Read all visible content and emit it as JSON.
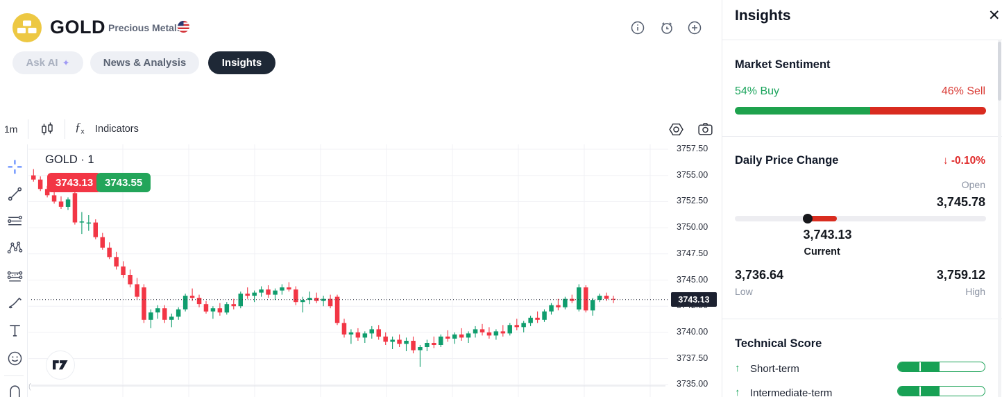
{
  "header": {
    "symbol": "GOLD",
    "category": "Precious Metals",
    "tabs": [
      {
        "label": "Ask AI",
        "active": false
      },
      {
        "label": "News & Analysis",
        "active": false
      },
      {
        "label": "Insights",
        "active": true
      }
    ],
    "icons": [
      "info-icon",
      "alarm-icon",
      "add-alert-icon"
    ]
  },
  "chart_toolbar": {
    "interval": "1m",
    "indicators_label": "Indicators",
    "icons": [
      "candlestick-style-icon",
      "fx-indicators-icon",
      "settings-icon",
      "camera-icon"
    ]
  },
  "drawing_toolbar": {
    "tools": [
      "crosshair",
      "trend-line",
      "parallel-lines",
      "xabcd-pattern",
      "projection",
      "brush",
      "text",
      "emoji",
      "magnet"
    ]
  },
  "chart": {
    "title": "GOLD · 1",
    "bid_badge": "3743.13",
    "ask_badge": "3743.55",
    "current_price_label": "3743.13"
  },
  "chart_data": {
    "type": "candlestick",
    "title": "GOLD · 1",
    "interval": "1m",
    "current_price": 3743.13,
    "up_color": "#0f9d6d",
    "down_color": "#f23645",
    "y_axis": {
      "min": 3735.0,
      "max": 3757.5,
      "tick_step": 2.5,
      "labels": [
        "3757.50",
        "3755.00",
        "3752.50",
        "3750.00",
        "3747.50",
        "3745.00",
        "3742.50",
        "3740.00",
        "3737.50",
        "3735.00"
      ],
      "values": [
        3757.5,
        3755.0,
        3752.5,
        3750.0,
        3747.5,
        3745.0,
        3742.5,
        3740.0,
        3737.5,
        3735.0
      ]
    },
    "layout": {
      "grid": true,
      "v_gridlines_x": [
        136,
        231,
        326,
        421,
        516,
        611,
        706,
        801,
        896
      ]
    },
    "candles": [
      [
        3755.0,
        3755.6,
        3754.4,
        3754.6
      ],
      [
        3754.6,
        3754.9,
        3753.5,
        3753.7
      ],
      [
        3753.7,
        3754.0,
        3752.9,
        3753.1
      ],
      [
        3753.1,
        3753.4,
        3752.3,
        3752.5
      ],
      [
        3752.5,
        3753.0,
        3751.8,
        3752.0
      ],
      [
        3752.0,
        3752.9,
        3751.7,
        3752.7
      ],
      [
        3753.3,
        3753.5,
        3750.3,
        3750.5
      ],
      [
        3750.5,
        3751.5,
        3749.4,
        3750.6
      ],
      [
        3750.4,
        3751.2,
        3749.7,
        3750.5
      ],
      [
        3750.5,
        3750.8,
        3748.9,
        3749.1
      ],
      [
        3749.1,
        3749.5,
        3747.9,
        3748.1
      ],
      [
        3748.1,
        3748.6,
        3747.0,
        3747.2
      ],
      [
        3747.2,
        3747.7,
        3746.0,
        3746.3
      ],
      [
        3746.3,
        3746.8,
        3745.2,
        3745.5
      ],
      [
        3745.5,
        3746.0,
        3744.3,
        3744.6
      ],
      [
        3744.6,
        3745.2,
        3743.1,
        3743.4
      ],
      [
        3744.3,
        3744.6,
        3740.9,
        3741.2
      ],
      [
        3741.2,
        3742.2,
        3740.4,
        3741.9
      ],
      [
        3741.9,
        3742.6,
        3741.3,
        3742.3
      ],
      [
        3742.3,
        3742.6,
        3740.9,
        3741.2
      ],
      [
        3741.2,
        3741.8,
        3740.5,
        3741.5
      ],
      [
        3741.5,
        3742.4,
        3741.2,
        3742.2
      ],
      [
        3742.2,
        3743.7,
        3742.0,
        3743.5
      ],
      [
        3743.5,
        3744.2,
        3743.0,
        3743.3
      ],
      [
        3743.3,
        3743.6,
        3742.4,
        3742.7
      ],
      [
        3742.7,
        3743.0,
        3741.8,
        3742.0
      ],
      [
        3742.0,
        3742.5,
        3741.3,
        3742.3
      ],
      [
        3742.3,
        3742.8,
        3741.6,
        3741.9
      ],
      [
        3741.9,
        3742.9,
        3741.7,
        3742.7
      ],
      [
        3742.7,
        3743.2,
        3742.2,
        3742.5
      ],
      [
        3742.5,
        3743.9,
        3742.3,
        3743.7
      ],
      [
        3743.7,
        3744.3,
        3743.2,
        3743.5
      ],
      [
        3743.5,
        3744.0,
        3742.9,
        3743.8
      ],
      [
        3743.8,
        3744.4,
        3743.4,
        3744.1
      ],
      [
        3744.1,
        3744.5,
        3743.3,
        3743.6
      ],
      [
        3743.6,
        3744.2,
        3743.1,
        3744.0
      ],
      [
        3744.0,
        3744.6,
        3743.6,
        3744.3
      ],
      [
        3744.3,
        3744.8,
        3743.9,
        3744.1
      ],
      [
        3744.1,
        3744.4,
        3742.6,
        3742.9
      ],
      [
        3742.9,
        3743.4,
        3741.9,
        3743.1
      ],
      [
        3743.1,
        3743.9,
        3742.7,
        3743.3
      ],
      [
        3743.3,
        3743.8,
        3742.8,
        3743.0
      ],
      [
        3743.0,
        3743.5,
        3742.5,
        3743.2
      ],
      [
        3743.2,
        3743.6,
        3742.3,
        3742.5
      ],
      [
        3743.4,
        3743.6,
        3740.7,
        3740.9
      ],
      [
        3740.9,
        3741.3,
        3739.5,
        3739.8
      ],
      [
        3739.8,
        3740.3,
        3738.9,
        3740.0
      ],
      [
        3740.0,
        3740.4,
        3739.2,
        3739.5
      ],
      [
        3739.5,
        3740.1,
        3739.0,
        3739.9
      ],
      [
        3739.9,
        3740.6,
        3739.4,
        3740.3
      ],
      [
        3740.3,
        3740.7,
        3739.3,
        3739.6
      ],
      [
        3739.6,
        3740.0,
        3738.8,
        3739.1
      ],
      [
        3739.1,
        3739.6,
        3738.4,
        3739.3
      ],
      [
        3739.3,
        3739.8,
        3738.6,
        3738.9
      ],
      [
        3738.9,
        3739.5,
        3738.2,
        3739.2
      ],
      [
        3739.2,
        3739.6,
        3738.0,
        3738.3
      ],
      [
        3738.3,
        3738.8,
        3736.7,
        3738.6
      ],
      [
        3738.6,
        3739.3,
        3738.2,
        3739.0
      ],
      [
        3739.0,
        3739.6,
        3738.5,
        3738.8
      ],
      [
        3738.8,
        3739.8,
        3738.6,
        3739.6
      ],
      [
        3739.6,
        3740.2,
        3739.1,
        3739.4
      ],
      [
        3739.4,
        3740.0,
        3738.9,
        3739.8
      ],
      [
        3739.8,
        3740.4,
        3739.2,
        3739.5
      ],
      [
        3739.5,
        3740.1,
        3739.0,
        3739.9
      ],
      [
        3739.9,
        3740.6,
        3739.5,
        3740.3
      ],
      [
        3740.3,
        3740.8,
        3739.7,
        3740.0
      ],
      [
        3740.0,
        3740.5,
        3739.4,
        3739.7
      ],
      [
        3739.7,
        3740.3,
        3739.3,
        3740.1
      ],
      [
        3740.1,
        3740.7,
        3739.6,
        3739.9
      ],
      [
        3739.9,
        3740.9,
        3739.7,
        3740.7
      ],
      [
        3740.7,
        3741.3,
        3740.2,
        3740.5
      ],
      [
        3740.5,
        3741.1,
        3740.0,
        3740.9
      ],
      [
        3740.9,
        3741.6,
        3740.6,
        3741.4
      ],
      [
        3741.4,
        3742.0,
        3740.9,
        3741.2
      ],
      [
        3741.2,
        3742.2,
        3741.0,
        3742.0
      ],
      [
        3742.0,
        3742.8,
        3741.7,
        3742.6
      ],
      [
        3742.6,
        3743.2,
        3742.1,
        3742.4
      ],
      [
        3742.4,
        3743.4,
        3742.2,
        3743.2
      ],
      [
        3743.2,
        3743.6,
        3742.8,
        3743.0
      ],
      [
        3742.2,
        3744.6,
        3742.0,
        3744.3
      ],
      [
        3744.3,
        3744.5,
        3741.9,
        3742.1
      ],
      [
        3742.1,
        3743.3,
        3741.6,
        3743.1
      ],
      [
        3743.1,
        3743.7,
        3742.9,
        3743.5
      ],
      [
        3743.5,
        3743.8,
        3743.0,
        3743.2
      ],
      [
        3743.2,
        3743.5,
        3742.8,
        3743.13
      ]
    ]
  },
  "insights_panel": {
    "title": "Insights",
    "close_icon": "close-icon",
    "market_sentiment": {
      "heading": "Market Sentiment",
      "buy_label": "54% Buy",
      "sell_label": "46% Sell",
      "buy_pct": 54,
      "sell_pct": 46,
      "buy_color": "#1ea24d",
      "sell_color": "#d92b1f"
    },
    "daily_price_change": {
      "heading": "Daily Price Change",
      "change_arrow": "↓",
      "change_pct": "-0.10%",
      "open_label": "Open",
      "open": "3,745.78",
      "open_value": 3745.78,
      "current": "3,743.13",
      "current_label": "Current",
      "current_value": 3743.13,
      "low": "3,736.64",
      "low_label": "Low",
      "low_value": 3736.64,
      "high": "3,759.12",
      "high_label": "High",
      "high_value": 3759.12
    },
    "technical_score": {
      "heading": "Technical Score",
      "bar_color": "#18a155",
      "rows": [
        {
          "label": "Short-term",
          "direction": "up",
          "fill_pct": 48,
          "tick_pct": 25
        },
        {
          "label": "Intermediate-term",
          "direction": "up",
          "fill_pct": 48,
          "tick_pct": 25
        }
      ]
    }
  }
}
